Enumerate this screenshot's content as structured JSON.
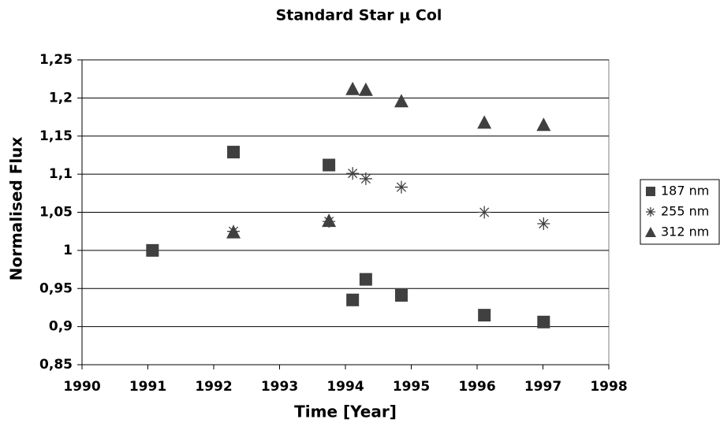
{
  "chart_data": {
    "type": "scatter",
    "title": "Standard Star μ Col",
    "x_label": "Time [Year]",
    "y_label": "Normalised Flux",
    "xlim": [
      1990,
      1998
    ],
    "xticks": [
      1990,
      1991,
      1992,
      1993,
      1994,
      1995,
      1996,
      1997,
      1998
    ],
    "ylim": [
      0.85,
      1.25
    ],
    "yticks": [
      {
        "value": 0.85,
        "label": "0,85"
      },
      {
        "value": 0.9,
        "label": "0,9"
      },
      {
        "value": 0.95,
        "label": "0,95"
      },
      1,
      {
        "value": 1.05,
        "label": "1,05"
      },
      {
        "value": 1.1,
        "label": "1,1"
      },
      {
        "value": 1.15,
        "label": "1,15"
      },
      {
        "value": 1.2,
        "label": "1,2"
      },
      {
        "value": 1.25,
        "label": "1,25"
      }
    ],
    "grid": true,
    "legend": "right",
    "series": [
      {
        "name": "187 nm",
        "color": "#404040",
        "marker": "square",
        "x": [
          1991.07,
          1992.3,
          1993.75,
          1994.11,
          1994.31,
          1994.85,
          1996.11,
          1997.01
        ],
        "values": [
          1.0,
          1.129,
          1.112,
          0.935,
          0.962,
          0.941,
          0.915,
          0.906
        ]
      },
      {
        "name": "255 nm",
        "color": "#404040",
        "marker": "asterisk",
        "x": [
          1992.3,
          1993.75,
          1994.11,
          1994.31,
          1994.85,
          1996.11,
          1997.01
        ],
        "values": [
          1.025,
          1.038,
          1.101,
          1.094,
          1.083,
          1.05,
          1.035
        ]
      },
      {
        "name": "312 nm",
        "color": "#404040",
        "marker": "triangle",
        "x": [
          1992.3,
          1993.75,
          1994.11,
          1994.31,
          1994.85,
          1996.11,
          1997.01
        ],
        "values": [
          1.024,
          1.039,
          1.212,
          1.211,
          1.196,
          1.168,
          1.165
        ]
      }
    ]
  }
}
